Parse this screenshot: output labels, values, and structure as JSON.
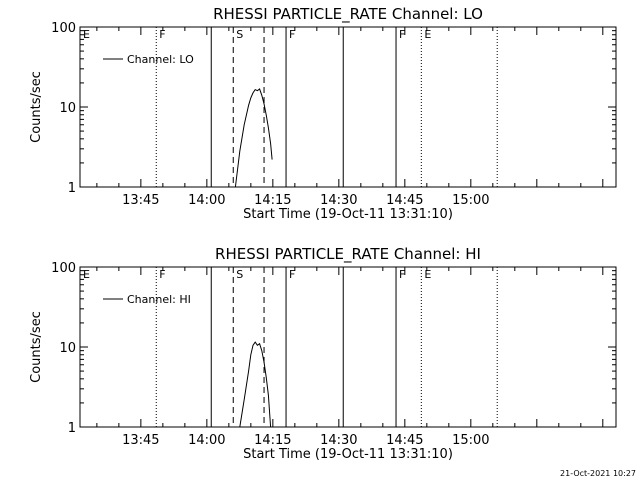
{
  "timestamp": "21-Oct-2021 10:27",
  "chart_data": [
    {
      "type": "line",
      "title": "RHESSI PARTICLE_RATE Channel: LO",
      "xlabel": "Start Time (19-Oct-11 13:31:10)",
      "ylabel": "Counts/sec",
      "yscale": "log",
      "xlim": [
        "13:31:10",
        "15:33:00"
      ],
      "ylim": [
        1,
        100
      ],
      "x_ticks": [
        "13:45",
        "14:00",
        "14:15",
        "14:30",
        "14:45",
        "15:00"
      ],
      "y_ticks": [
        "1",
        "10",
        "100"
      ],
      "legend": {
        "position": "top-left",
        "entries": [
          "Channel: LO"
        ]
      },
      "series": [
        {
          "name": "Channel: LO",
          "x": [
            "14:06:30",
            "14:07:30",
            "14:08:30",
            "14:09:30",
            "14:10:00",
            "14:10:30",
            "14:11:00",
            "14:11:30",
            "14:12:00",
            "14:12:30",
            "14:13:00",
            "14:13:30",
            "14:14:00",
            "14:14:30",
            "14:14:50"
          ],
          "y": [
            1.0,
            2.8,
            6.0,
            10.5,
            13.0,
            15.0,
            16.5,
            16.0,
            16.8,
            14.0,
            11.0,
            8.0,
            5.5,
            3.5,
            2.2
          ]
        }
      ],
      "markers": [
        {
          "label": "E",
          "time": "13:31:10",
          "style": "none"
        },
        {
          "label": "F",
          "time": "13:48:30",
          "style": "dotted"
        },
        {
          "label": "",
          "time": "14:01:00",
          "style": "solid"
        },
        {
          "label": "S",
          "time": "14:06:00",
          "style": "dashed"
        },
        {
          "label": "",
          "time": "14:13:00",
          "style": "dashed"
        },
        {
          "label": "F",
          "time": "14:18:00",
          "style": "solid"
        },
        {
          "label": "",
          "time": "14:31:00",
          "style": "solid"
        },
        {
          "label": "F",
          "time": "14:43:00",
          "style": "solid"
        },
        {
          "label": "E",
          "time": "14:48:45",
          "style": "dotted"
        },
        {
          "label": "",
          "time": "15:06:00",
          "style": "dotted"
        }
      ]
    },
    {
      "type": "line",
      "title": "RHESSI PARTICLE_RATE Channel: HI",
      "xlabel": "Start Time (19-Oct-11 13:31:10)",
      "ylabel": "Counts/sec",
      "yscale": "log",
      "xlim": [
        "13:31:10",
        "15:33:00"
      ],
      "ylim": [
        1,
        100
      ],
      "x_ticks": [
        "13:45",
        "14:00",
        "14:15",
        "14:30",
        "14:45",
        "15:00"
      ],
      "y_ticks": [
        "1",
        "10",
        "100"
      ],
      "legend": {
        "position": "top-left",
        "entries": [
          "Channel: HI"
        ]
      },
      "series": [
        {
          "name": "Channel: HI",
          "x": [
            "14:07:30",
            "14:08:30",
            "14:09:30",
            "14:10:00",
            "14:10:30",
            "14:11:00",
            "14:11:30",
            "14:12:00",
            "14:12:30",
            "14:13:00",
            "14:13:30",
            "14:14:00",
            "14:14:30"
          ],
          "y": [
            1.0,
            2.2,
            5.0,
            8.0,
            10.5,
            11.5,
            10.5,
            11.0,
            9.0,
            6.5,
            4.2,
            2.5,
            1.0
          ]
        }
      ],
      "markers": [
        {
          "label": "E",
          "time": "13:31:10",
          "style": "none"
        },
        {
          "label": "F",
          "time": "13:48:30",
          "style": "dotted"
        },
        {
          "label": "",
          "time": "14:01:00",
          "style": "solid"
        },
        {
          "label": "S",
          "time": "14:06:00",
          "style": "dashed"
        },
        {
          "label": "",
          "time": "14:13:00",
          "style": "dashed"
        },
        {
          "label": "F",
          "time": "14:18:00",
          "style": "solid"
        },
        {
          "label": "",
          "time": "14:31:00",
          "style": "solid"
        },
        {
          "label": "F",
          "time": "14:43:00",
          "style": "solid"
        },
        {
          "label": "E",
          "time": "14:48:45",
          "style": "dotted"
        },
        {
          "label": "",
          "time": "15:06:00",
          "style": "dotted"
        }
      ]
    }
  ]
}
